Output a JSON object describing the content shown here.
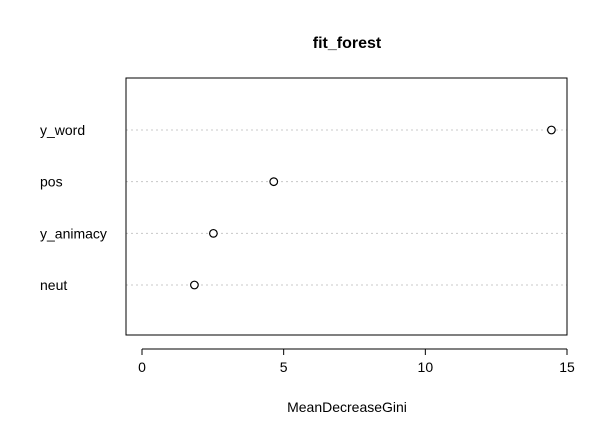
{
  "chart_data": {
    "type": "scatter",
    "title": "fit_forest",
    "xlabel": "MeanDecreaseGini",
    "ylabel": "",
    "xlim": [
      0,
      15
    ],
    "xticks": [
      0,
      5,
      10,
      15
    ],
    "grid": "dotted horizontal guides",
    "categories": [
      "y_word",
      "pos",
      "y_animacy",
      "neut"
    ],
    "values": [
      14.45,
      4.65,
      2.52,
      1.85
    ]
  }
}
